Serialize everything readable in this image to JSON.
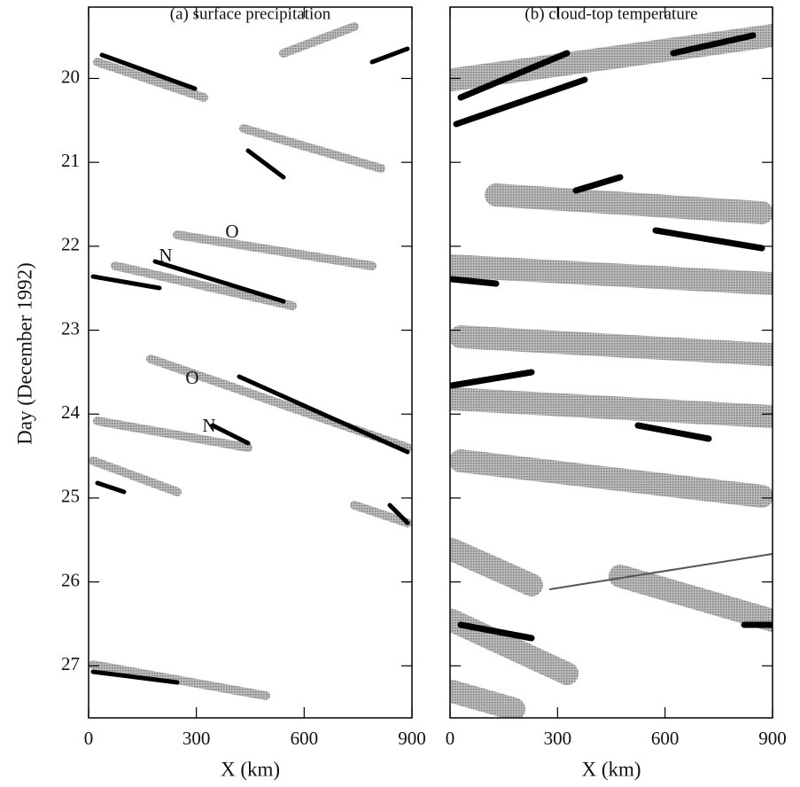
{
  "chart_data": [
    {
      "type": "image",
      "title": "(a) surface precipitation",
      "xlabel": "X (km)",
      "ylabel": "Day (December 1992)",
      "xlim": [
        0,
        900
      ],
      "xticks": [
        0,
        300,
        600,
        900
      ],
      "ylim": [
        27.62,
        19.15
      ],
      "yticks": [
        20,
        21,
        22,
        23,
        24,
        25,
        26,
        27
      ],
      "annotations": [
        "O",
        "N",
        "O",
        "N"
      ]
    },
    {
      "type": "image",
      "title": "(b) cloud-top temperature",
      "xlabel": "X (km)",
      "xlim": [
        0,
        900
      ],
      "xticks": [
        0,
        300,
        600,
        900
      ]
    }
  ]
}
